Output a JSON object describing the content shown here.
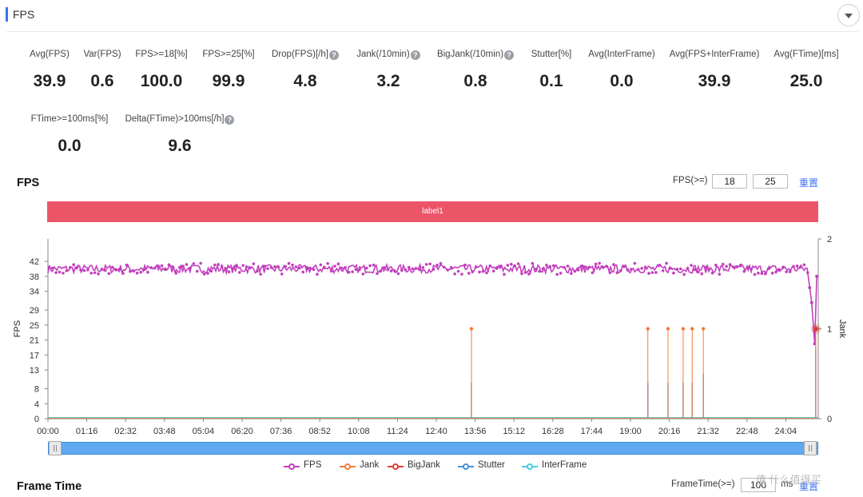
{
  "header": {
    "title": "FPS"
  },
  "metrics_row1": [
    {
      "label": "Avg(FPS)",
      "value": "39.9",
      "help": false
    },
    {
      "label": "Var(FPS)",
      "value": "0.6",
      "help": false
    },
    {
      "label": "FPS>=18[%]",
      "value": "100.0",
      "help": false
    },
    {
      "label": "FPS>=25[%]",
      "value": "99.9",
      "help": false
    },
    {
      "label": "Drop(FPS)[/h]",
      "value": "4.8",
      "help": true
    },
    {
      "label": "Jank(/10min)",
      "value": "3.2",
      "help": true
    },
    {
      "label": "BigJank(/10min)",
      "value": "0.8",
      "help": true
    },
    {
      "label": "Stutter[%]",
      "value": "0.1",
      "help": false
    },
    {
      "label": "Avg(InterFrame)",
      "value": "0.0",
      "help": false
    },
    {
      "label": "Avg(FPS+InterFrame)",
      "value": "39.9",
      "help": false
    },
    {
      "label": "Avg(FTime)[ms]",
      "value": "25.0",
      "help": false
    }
  ],
  "metrics_row2": [
    {
      "label": "FTime>=100ms[%]",
      "value": "0.0",
      "help": false
    },
    {
      "label": "Delta(FTime)>100ms[/h]",
      "value": "9.6",
      "help": true
    }
  ],
  "help_glyph": "?",
  "fps_section": {
    "title": "FPS",
    "threshold_label": "FPS(>=)",
    "threshold_low": "18",
    "threshold_high": "25",
    "reset_label": "重置",
    "band_label": "label1"
  },
  "frametime_section": {
    "title": "Frame Time",
    "threshold_label": "FrameTime(>=)",
    "threshold_value": "100",
    "unit": "ms",
    "reset_label": "重置"
  },
  "legend": [
    {
      "name": "FPS",
      "color": "#c23fbd"
    },
    {
      "name": "Jank",
      "color": "#f07c3a"
    },
    {
      "name": "BigJank",
      "color": "#e03b3b"
    },
    {
      "name": "Stutter",
      "color": "#4a8fd9"
    },
    {
      "name": "InterFrame",
      "color": "#46cde0"
    }
  ],
  "watermark": "值 什么值得买",
  "chart_data": {
    "type": "line",
    "x_ticks": [
      "00:00",
      "01:16",
      "02:32",
      "03:48",
      "05:04",
      "06:20",
      "07:36",
      "08:52",
      "10:08",
      "11:24",
      "12:40",
      "13:56",
      "15:12",
      "16:28",
      "17:44",
      "19:00",
      "20:16",
      "21:32",
      "22:48",
      "24:04"
    ],
    "x_range_minutes": [
      0,
      1528
    ],
    "y_left": {
      "label": "FPS",
      "ticks": [
        0,
        4,
        8,
        13,
        17,
        21,
        25,
        29,
        34,
        38,
        42
      ],
      "range": [
        0,
        48
      ]
    },
    "y_right": {
      "label": "Jank",
      "ticks": [
        0,
        1,
        2
      ],
      "range": [
        0,
        2
      ]
    },
    "series": [
      {
        "name": "FPS",
        "axis": "left",
        "baseline": 40,
        "spikes": [
          {
            "x": 1511,
            "y": 35
          },
          {
            "x": 1515,
            "y": 31
          },
          {
            "x": 1521,
            "y": 20
          },
          {
            "x": 1525,
            "y": 38
          }
        ]
      },
      {
        "name": "Jank",
        "axis": "right",
        "events": [
          {
            "x": 840,
            "y": 1
          },
          {
            "x": 1190,
            "y": 1
          },
          {
            "x": 1230,
            "y": 1
          },
          {
            "x": 1260,
            "y": 1
          },
          {
            "x": 1278,
            "y": 1
          },
          {
            "x": 1300,
            "y": 1
          },
          {
            "x": 1523,
            "y": 1
          }
        ]
      },
      {
        "name": "BigJank",
        "axis": "right",
        "events": [
          {
            "x": 1523,
            "y": 1
          }
        ]
      },
      {
        "name": "Stutter",
        "axis": "right",
        "events": [
          {
            "x": 840,
            "y": 0.4
          },
          {
            "x": 1190,
            "y": 0.4
          },
          {
            "x": 1230,
            "y": 0.4
          },
          {
            "x": 1260,
            "y": 0.4
          },
          {
            "x": 1278,
            "y": 0.4
          },
          {
            "x": 1300,
            "y": 0.5
          },
          {
            "x": 1523,
            "y": 0.8
          }
        ]
      },
      {
        "name": "InterFrame",
        "axis": "left",
        "values_constant": 0
      }
    ]
  }
}
